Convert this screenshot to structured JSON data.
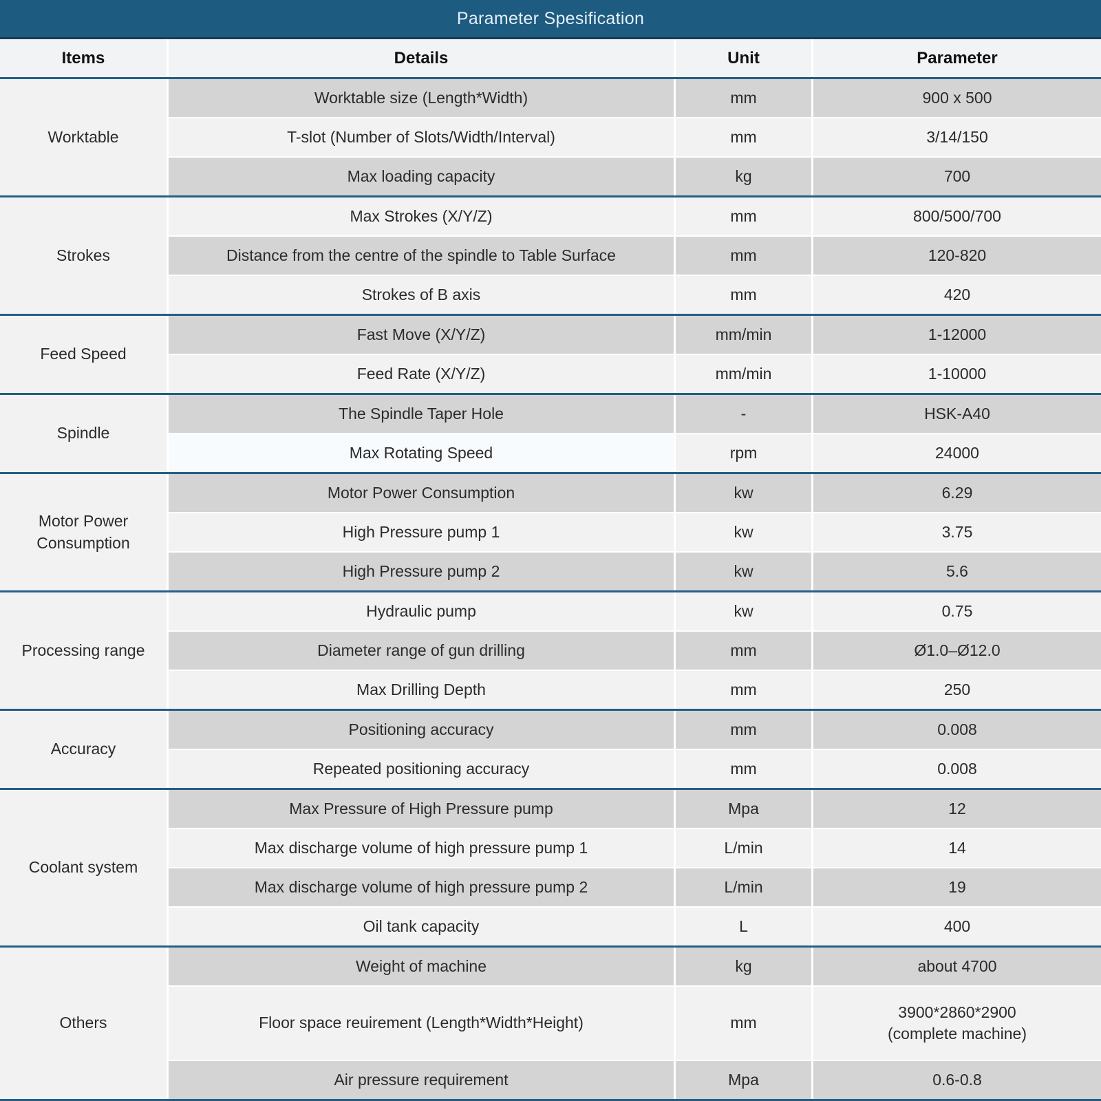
{
  "title": "Parameter Spesification",
  "columns": {
    "items": "Items",
    "details": "Details",
    "unit": "Unit",
    "parameter": "Parameter"
  },
  "colors": {
    "title_bar": "#1e5b80",
    "title_bar_border": "#143d56",
    "section_separator": "#235e86",
    "row_gray": "#d4d4d4",
    "row_light": "#f2f2f3",
    "highlight_cell": "#f8fbfe",
    "header_text": "#111111",
    "body_text": "#2b2b2b",
    "title_text": "#e6f0f8"
  },
  "groups": [
    {
      "item": "Worktable",
      "rows": [
        {
          "details": "Worktable size (Length*Width)",
          "unit": "mm",
          "parameter": "900 x 500"
        },
        {
          "details": "T-slot (Number of Slots/Width/Interval)",
          "unit": "mm",
          "parameter": "3/14/150"
        },
        {
          "details": "Max loading capacity",
          "unit": "kg",
          "parameter": "700"
        }
      ]
    },
    {
      "item": "Strokes",
      "rows": [
        {
          "details": "Max Strokes (X/Y/Z)",
          "unit": "mm",
          "parameter": "800/500/700"
        },
        {
          "details": "Distance from the centre of the spindle to Table Surface",
          "unit": "mm",
          "parameter": "120-820"
        },
        {
          "details": "Strokes of B axis",
          "unit": "mm",
          "parameter": "420"
        }
      ]
    },
    {
      "item": "Feed Speed",
      "rows": [
        {
          "details": "Fast Move (X/Y/Z)",
          "unit": "mm/min",
          "parameter": "1-12000"
        },
        {
          "details": "Feed Rate (X/Y/Z)",
          "unit": "mm/min",
          "parameter": "1-10000"
        }
      ]
    },
    {
      "item": "Spindle",
      "rows": [
        {
          "details": "The Spindle Taper Hole",
          "unit": "-",
          "parameter": "HSK-A40"
        },
        {
          "details": "Max Rotating Speed",
          "unit": "rpm",
          "parameter": "24000",
          "highlight_details": true
        }
      ]
    },
    {
      "item": "Motor Power Consumption",
      "rows": [
        {
          "details": "Motor Power Consumption",
          "unit": "kw",
          "parameter": "6.29"
        },
        {
          "details": "High Pressure pump 1",
          "unit": "kw",
          "parameter": "3.75"
        },
        {
          "details": "High Pressure pump 2",
          "unit": "kw",
          "parameter": "5.6"
        }
      ]
    },
    {
      "item": "Processing range",
      "rows": [
        {
          "details": "Hydraulic pump",
          "unit": "kw",
          "parameter": "0.75"
        },
        {
          "details": "Diameter range of gun drilling",
          "unit": "mm",
          "parameter": "Ø1.0–Ø12.0"
        },
        {
          "details": "Max Drilling Depth",
          "unit": "mm",
          "parameter": "250"
        }
      ]
    },
    {
      "item": "Accuracy",
      "rows": [
        {
          "details": "Positioning accuracy",
          "unit": "mm",
          "parameter": "0.008"
        },
        {
          "details": "Repeated positioning accuracy",
          "unit": "mm",
          "parameter": "0.008"
        }
      ]
    },
    {
      "item": "Coolant system",
      "rows": [
        {
          "details": "Max Pressure of High Pressure pump",
          "unit": "Mpa",
          "parameter": "12"
        },
        {
          "details": "Max discharge volume of high pressure pump 1",
          "unit": "L/min",
          "parameter": "14"
        },
        {
          "details": "Max discharge volume of high pressure pump 2",
          "unit": "L/min",
          "parameter": "19"
        },
        {
          "details": "Oil tank capacity",
          "unit": "L",
          "parameter": "400"
        }
      ]
    },
    {
      "item": "Others",
      "rows": [
        {
          "details": "Weight of machine",
          "unit": "kg",
          "parameter": "about 4700"
        },
        {
          "details": "Floor space reuirement (Length*Width*Height)",
          "unit": "mm",
          "parameter": "3900*2860*2900\n(complete machine)",
          "tall": true
        },
        {
          "details": "Air pressure requirement",
          "unit": "Mpa",
          "parameter": "0.6-0.8"
        }
      ]
    }
  ]
}
